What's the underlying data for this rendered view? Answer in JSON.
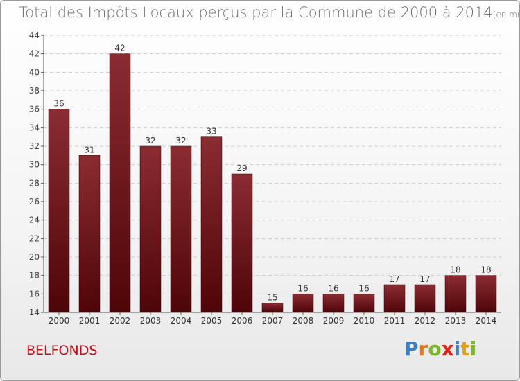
{
  "header": {
    "title": "Total des Impôts Locaux perçus par la Commune de 2000 à 2014",
    "subtitle": "(en milliers d'€)"
  },
  "footer": {
    "commune": "BELFONDS",
    "brand": "Proxiti",
    "brand_letters": [
      {
        "ch": "P",
        "color": "#3a7fc4"
      },
      {
        "ch": "r",
        "color": "#e07a1c"
      },
      {
        "ch": "o",
        "color": "#7cb42a"
      },
      {
        "ch": "x",
        "color": "#e0231c"
      },
      {
        "ch": "i",
        "color": "#3a7fc4"
      },
      {
        "ch": "t",
        "color": "#e0a21c"
      },
      {
        "ch": "i",
        "color": "#7cb42a"
      }
    ]
  },
  "colors": {
    "bar_top": "#8a2c32",
    "bar_bottom": "#4e0508",
    "grid": "#cccccc",
    "axis": "#555555",
    "commune": "#c01018"
  },
  "chart_data": {
    "type": "bar",
    "title": "Total des Impôts Locaux perçus par la Commune de 2000 à 2014",
    "unit": "en milliers d'€",
    "categories": [
      "2000",
      "2001",
      "2002",
      "2003",
      "2004",
      "2005",
      "2006",
      "2007",
      "2008",
      "2009",
      "2010",
      "2011",
      "2012",
      "2013",
      "2014"
    ],
    "values": [
      36,
      31,
      42,
      32,
      32,
      33,
      29,
      15,
      16,
      16,
      16,
      17,
      17,
      18,
      18
    ],
    "ylim": [
      14,
      44
    ],
    "yticks": [
      14,
      16,
      18,
      20,
      22,
      24,
      26,
      28,
      30,
      32,
      34,
      36,
      38,
      40,
      42,
      44
    ],
    "grid": true,
    "xlabel": "",
    "ylabel": ""
  }
}
